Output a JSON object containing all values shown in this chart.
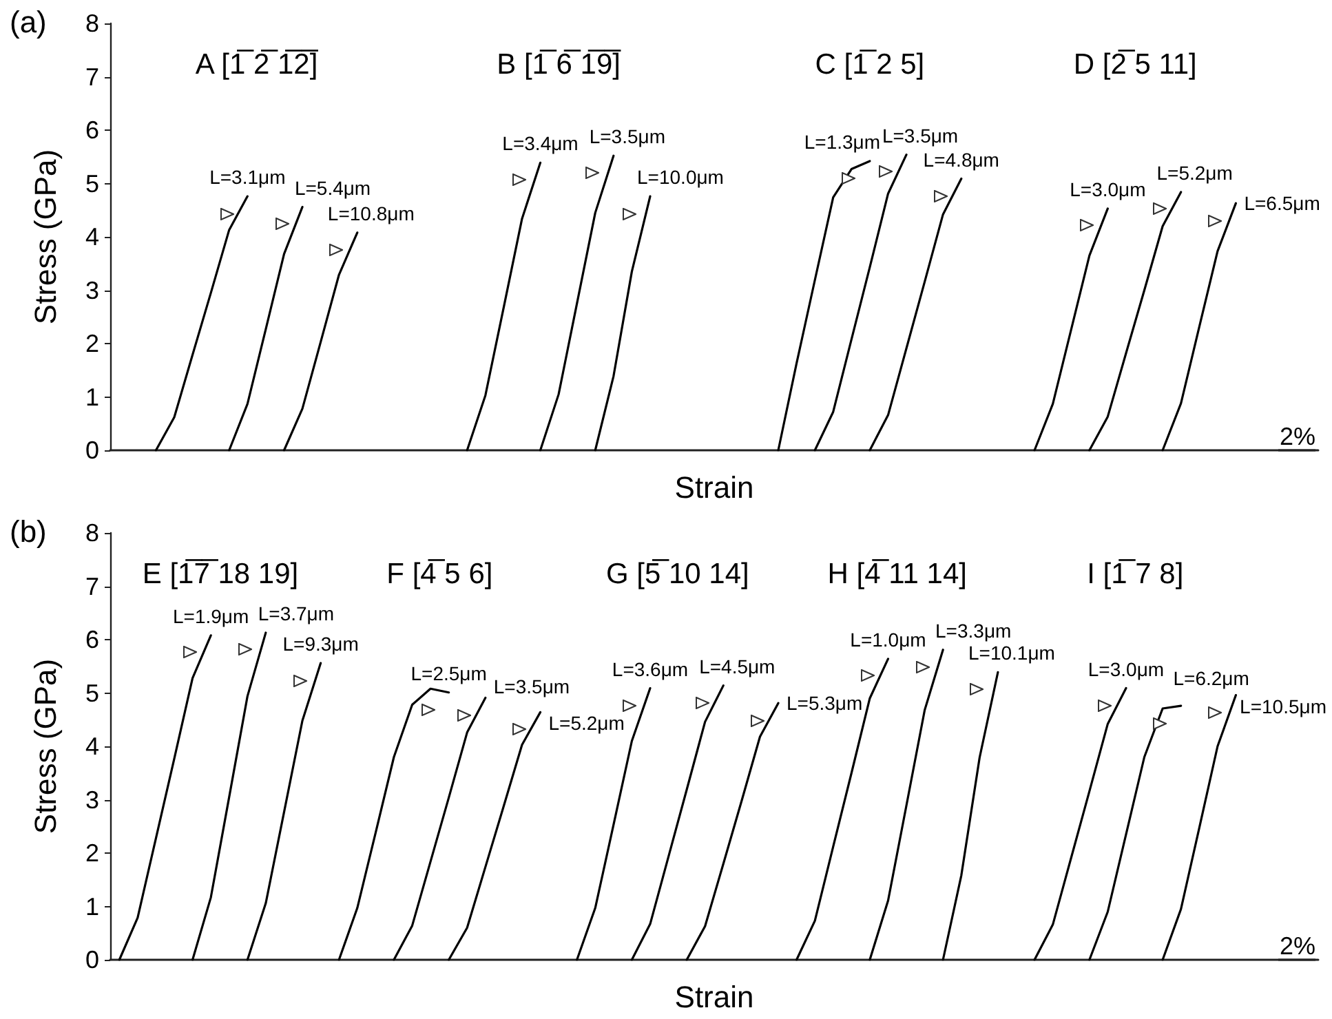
{
  "chart_data": [
    {
      "type": "line",
      "title": "(a)",
      "xlabel": "Strain",
      "ylabel": "Stress (GPa)",
      "ylim": [
        0,
        8
      ],
      "yticks": [
        0,
        1,
        2,
        3,
        4,
        5,
        6,
        7,
        8
      ],
      "tick_labels": "y",
      "marker": "none",
      "line_style": "solid",
      "legend": false,
      "categories": [
        null,
        null,
        null,
        null,
        null,
        null,
        null,
        null,
        null,
        null,
        null,
        null,
        null,
        null,
        null,
        null,
        null,
        null,
        null,
        null,
        null,
        null,
        null,
        null,
        null,
        null,
        null,
        null,
        null,
        null,
        null,
        null,
        null,
        null,
        null,
        null,
        null,
        null,
        null,
        null,
        null,
        null,
        null,
        null,
        null,
        null,
        null,
        null,
        null,
        null,
        null,
        null,
        null,
        null,
        null,
        null,
        null,
        null,
        null,
        null,
        null,
        null,
        null,
        null,
        null,
        null
      ],
      "series": [
        {
          "name": "L=3.1μm",
          "color": "#000000",
          "values": [
            null,
            null,
            0,
            0.62,
            1.79,
            2.95,
            4.13,
            4.76,
            null,
            null,
            null,
            null,
            null,
            null,
            null,
            null,
            null,
            null,
            null,
            null,
            null,
            null,
            null,
            null,
            null,
            null,
            null,
            null,
            null,
            null,
            null,
            null,
            null,
            null,
            null,
            null,
            null,
            null,
            null,
            null,
            null,
            null,
            null,
            null,
            null,
            null,
            null,
            null,
            null,
            null,
            null,
            null,
            null,
            null,
            null,
            null,
            null,
            null,
            null,
            null,
            null,
            null,
            null,
            null,
            null,
            null
          ]
        },
        {
          "name": "L=5.4μm",
          "color": "#000000",
          "values": [
            null,
            null,
            null,
            null,
            null,
            null,
            0,
            0.87,
            2.27,
            3.68,
            4.56,
            null,
            null,
            null,
            null,
            null,
            null,
            null,
            null,
            null,
            null,
            null,
            null,
            null,
            null,
            null,
            null,
            null,
            null,
            null,
            null,
            null,
            null,
            null,
            null,
            null,
            null,
            null,
            null,
            null,
            null,
            null,
            null,
            null,
            null,
            null,
            null,
            null,
            null,
            null,
            null,
            null,
            null,
            null,
            null,
            null,
            null,
            null,
            null,
            null,
            null,
            null,
            null,
            null,
            null,
            null
          ]
        },
        {
          "name": "L=10.8μm",
          "color": "#000000",
          "values": [
            null,
            null,
            null,
            null,
            null,
            null,
            null,
            null,
            null,
            0,
            0.78,
            2.03,
            3.29,
            4.08,
            null,
            null,
            null,
            null,
            null,
            null,
            null,
            null,
            null,
            null,
            null,
            null,
            null,
            null,
            null,
            null,
            null,
            null,
            null,
            null,
            null,
            null,
            null,
            null,
            null,
            null,
            null,
            null,
            null,
            null,
            null,
            null,
            null,
            null,
            null,
            null,
            null,
            null,
            null,
            null,
            null,
            null,
            null,
            null,
            null,
            null,
            null,
            null,
            null,
            null,
            null,
            null
          ]
        },
        {
          "name": "L=3.4μm",
          "color": "#000000",
          "values": [
            null,
            null,
            null,
            null,
            null,
            null,
            null,
            null,
            null,
            null,
            null,
            null,
            null,
            null,
            null,
            null,
            null,
            null,
            null,
            0,
            1.03,
            2.68,
            4.34,
            5.39,
            null,
            null,
            null,
            null,
            null,
            null,
            null,
            null,
            null,
            null,
            null,
            null,
            null,
            null,
            null,
            null,
            null,
            null,
            null,
            null,
            null,
            null,
            null,
            null,
            null,
            null,
            null,
            null,
            null,
            null,
            null,
            null,
            null,
            null,
            null,
            null,
            null,
            null,
            null,
            null,
            null,
            null
          ]
        },
        {
          "name": "L=3.5μm",
          "color": "#000000",
          "values": [
            null,
            null,
            null,
            null,
            null,
            null,
            null,
            null,
            null,
            null,
            null,
            null,
            null,
            null,
            null,
            null,
            null,
            null,
            null,
            null,
            null,
            null,
            null,
            0,
            1.05,
            2.75,
            4.45,
            5.52,
            null,
            null,
            null,
            null,
            null,
            null,
            null,
            null,
            null,
            null,
            null,
            null,
            null,
            null,
            null,
            null,
            null,
            null,
            null,
            null,
            null,
            null,
            null,
            null,
            null,
            null,
            null,
            null,
            null,
            null,
            null,
            null,
            null,
            null,
            null,
            null,
            null,
            null
          ]
        },
        {
          "name": "L=10.0μm",
          "color": "#000000",
          "values": [
            null,
            null,
            null,
            null,
            null,
            null,
            null,
            null,
            null,
            null,
            null,
            null,
            null,
            null,
            null,
            null,
            null,
            null,
            null,
            null,
            null,
            null,
            null,
            null,
            null,
            null,
            0,
            1.39,
            3.35,
            4.76,
            null,
            null,
            null,
            null,
            null,
            null,
            null,
            null,
            null,
            null,
            null,
            null,
            null,
            null,
            null,
            null,
            null,
            null,
            null,
            null,
            null,
            null,
            null,
            null,
            null,
            null,
            null,
            null,
            null,
            null,
            null,
            null,
            null,
            null,
            null,
            null
          ]
        },
        {
          "name": "L=1.3μm",
          "color": "#000000",
          "values": [
            null,
            null,
            null,
            null,
            null,
            null,
            null,
            null,
            null,
            null,
            null,
            null,
            null,
            null,
            null,
            null,
            null,
            null,
            null,
            null,
            null,
            null,
            null,
            null,
            null,
            null,
            null,
            null,
            null,
            null,
            null,
            null,
            null,
            null,
            null,
            null,
            0,
            1.63,
            3.19,
            4.74,
            5.27,
            5.42,
            null,
            null,
            null,
            null,
            null,
            null,
            null,
            null,
            null,
            null,
            null,
            null,
            null,
            null,
            null,
            null,
            null,
            null,
            null,
            null,
            null,
            null,
            null,
            null
          ]
        },
        {
          "name": "L=3.5μm",
          "color": "#000000",
          "values": [
            null,
            null,
            null,
            null,
            null,
            null,
            null,
            null,
            null,
            null,
            null,
            null,
            null,
            null,
            null,
            null,
            null,
            null,
            null,
            null,
            null,
            null,
            null,
            null,
            null,
            null,
            null,
            null,
            null,
            null,
            null,
            null,
            null,
            null,
            null,
            null,
            null,
            null,
            0,
            0.72,
            2.08,
            3.43,
            4.81,
            5.54,
            null,
            null,
            null,
            null,
            null,
            null,
            null,
            null,
            null,
            null,
            null,
            null,
            null,
            null,
            null,
            null,
            null,
            null,
            null,
            null,
            null,
            null
          ]
        },
        {
          "name": "L=4.8μm",
          "color": "#000000",
          "values": [
            null,
            null,
            null,
            null,
            null,
            null,
            null,
            null,
            null,
            null,
            null,
            null,
            null,
            null,
            null,
            null,
            null,
            null,
            null,
            null,
            null,
            null,
            null,
            null,
            null,
            null,
            null,
            null,
            null,
            null,
            null,
            null,
            null,
            null,
            null,
            null,
            null,
            null,
            null,
            null,
            null,
            0,
            0.66,
            1.91,
            3.16,
            4.42,
            5.09,
            null,
            null,
            null,
            null,
            null,
            null,
            null,
            null,
            null,
            null,
            null,
            null,
            null,
            null,
            null,
            null,
            null,
            null,
            null
          ]
        },
        {
          "name": "L=3.0μm",
          "color": "#000000",
          "values": [
            null,
            null,
            null,
            null,
            null,
            null,
            null,
            null,
            null,
            null,
            null,
            null,
            null,
            null,
            null,
            null,
            null,
            null,
            null,
            null,
            null,
            null,
            null,
            null,
            null,
            null,
            null,
            null,
            null,
            null,
            null,
            null,
            null,
            null,
            null,
            null,
            null,
            null,
            null,
            null,
            null,
            null,
            null,
            null,
            null,
            null,
            null,
            null,
            null,
            null,
            0,
            0.87,
            2.26,
            3.65,
            4.53,
            null,
            null,
            null,
            null,
            null,
            null,
            null,
            null,
            null,
            null,
            null
          ]
        },
        {
          "name": "L=5.2μm",
          "color": "#000000",
          "values": [
            null,
            null,
            null,
            null,
            null,
            null,
            null,
            null,
            null,
            null,
            null,
            null,
            null,
            null,
            null,
            null,
            null,
            null,
            null,
            null,
            null,
            null,
            null,
            null,
            null,
            null,
            null,
            null,
            null,
            null,
            null,
            null,
            null,
            null,
            null,
            null,
            null,
            null,
            null,
            null,
            null,
            null,
            null,
            null,
            null,
            null,
            null,
            null,
            null,
            null,
            null,
            null,
            null,
            0,
            0.63,
            1.82,
            3.0,
            4.2,
            4.84,
            null,
            null,
            null,
            null,
            null,
            null,
            null
          ]
        },
        {
          "name": "L=6.5μm",
          "color": "#000000",
          "values": [
            null,
            null,
            null,
            null,
            null,
            null,
            null,
            null,
            null,
            null,
            null,
            null,
            null,
            null,
            null,
            null,
            null,
            null,
            null,
            null,
            null,
            null,
            null,
            null,
            null,
            null,
            null,
            null,
            null,
            null,
            null,
            null,
            null,
            null,
            null,
            null,
            null,
            null,
            null,
            null,
            null,
            null,
            null,
            null,
            null,
            null,
            null,
            null,
            null,
            null,
            null,
            null,
            null,
            null,
            null,
            null,
            null,
            0,
            0.88,
            2.31,
            3.73,
            4.63,
            null,
            null,
            null,
            null
          ]
        }
      ],
      "annotations": [
        "A [1̅ 2̅ 1̅2̅]",
        "B [1̅ 6̅ 1̅9̅]",
        "C [1̅ 2 5]",
        "D [2̅ 5 11]",
        "2%"
      ]
    },
    {
      "type": "line",
      "title": "(b)",
      "xlabel": "Strain",
      "ylabel": "Stress (GPa)",
      "ylim": [
        0,
        8
      ],
      "yticks": [
        0,
        1,
        2,
        3,
        4,
        5,
        6,
        7,
        8
      ],
      "tick_labels": "y",
      "marker": "none",
      "line_style": "solid",
      "legend": false,
      "categories": [
        null,
        null,
        null,
        null,
        null,
        null,
        null,
        null,
        null,
        null,
        null,
        null,
        null,
        null,
        null,
        null,
        null,
        null,
        null,
        null,
        null,
        null,
        null,
        null,
        null,
        null,
        null,
        null,
        null,
        null,
        null,
        null,
        null,
        null,
        null,
        null,
        null,
        null,
        null,
        null,
        null,
        null,
        null,
        null,
        null,
        null,
        null,
        null,
        null,
        null,
        null,
        null,
        null,
        null,
        null,
        null,
        null,
        null,
        null,
        null,
        null,
        null,
        null,
        null,
        null,
        null
      ],
      "series": [
        {
          "name": "L=1.9μm",
          "color": "#000000",
          "values": [
            0,
            0.79,
            2.28,
            3.77,
            5.28,
            6.08,
            null,
            null,
            null,
            null,
            null,
            null,
            null,
            null,
            null,
            null,
            null,
            null,
            null,
            null,
            null,
            null,
            null,
            null,
            null,
            null,
            null,
            null,
            null,
            null,
            null,
            null,
            null,
            null,
            null,
            null,
            null,
            null,
            null,
            null,
            null,
            null,
            null,
            null,
            null,
            null,
            null,
            null,
            null,
            null,
            null,
            null,
            null,
            null,
            null,
            null,
            null,
            null,
            null,
            null,
            null,
            null,
            null,
            null,
            null,
            null
          ]
        },
        {
          "name": "L=3.7μm",
          "color": "#000000",
          "values": [
            null,
            null,
            null,
            null,
            0,
            1.17,
            3.05,
            4.94,
            6.13,
            null,
            null,
            null,
            null,
            null,
            null,
            null,
            null,
            null,
            null,
            null,
            null,
            null,
            null,
            null,
            null,
            null,
            null,
            null,
            null,
            null,
            null,
            null,
            null,
            null,
            null,
            null,
            null,
            null,
            null,
            null,
            null,
            null,
            null,
            null,
            null,
            null,
            null,
            null,
            null,
            null,
            null,
            null,
            null,
            null,
            null,
            null,
            null,
            null,
            null,
            null,
            null,
            null,
            null,
            null,
            null,
            null
          ]
        },
        {
          "name": "L=9.3μm",
          "color": "#000000",
          "values": [
            null,
            null,
            null,
            null,
            null,
            null,
            null,
            0,
            1.06,
            2.77,
            4.48,
            5.56,
            null,
            null,
            null,
            null,
            null,
            null,
            null,
            null,
            null,
            null,
            null,
            null,
            null,
            null,
            null,
            null,
            null,
            null,
            null,
            null,
            null,
            null,
            null,
            null,
            null,
            null,
            null,
            null,
            null,
            null,
            null,
            null,
            null,
            null,
            null,
            null,
            null,
            null,
            null,
            null,
            null,
            null,
            null,
            null,
            null,
            null,
            null,
            null,
            null,
            null,
            null,
            null,
            null,
            null
          ]
        },
        {
          "name": "L=2.5μm",
          "color": "#000000",
          "values": [
            null,
            null,
            null,
            null,
            null,
            null,
            null,
            null,
            null,
            null,
            null,
            null,
            0,
            0.97,
            2.38,
            3.8,
            4.78,
            5.08,
            5.01,
            null,
            null,
            null,
            null,
            null,
            null,
            null,
            null,
            null,
            null,
            null,
            null,
            null,
            null,
            null,
            null,
            null,
            null,
            null,
            null,
            null,
            null,
            null,
            null,
            null,
            null,
            null,
            null,
            null,
            null,
            null,
            null,
            null,
            null,
            null,
            null,
            null,
            null,
            null,
            null,
            null,
            null,
            null,
            null,
            null,
            null,
            null
          ]
        },
        {
          "name": "L=3.5μm",
          "color": "#000000",
          "values": [
            null,
            null,
            null,
            null,
            null,
            null,
            null,
            null,
            null,
            null,
            null,
            null,
            null,
            null,
            null,
            0,
            0.64,
            1.84,
            3.04,
            4.26,
            4.91,
            null,
            null,
            null,
            null,
            null,
            null,
            null,
            null,
            null,
            null,
            null,
            null,
            null,
            null,
            null,
            null,
            null,
            null,
            null,
            null,
            null,
            null,
            null,
            null,
            null,
            null,
            null,
            null,
            null,
            null,
            null,
            null,
            null,
            null,
            null,
            null,
            null,
            null,
            null,
            null,
            null,
            null,
            null,
            null,
            null
          ]
        },
        {
          "name": "L=5.2μm",
          "color": "#000000",
          "values": [
            null,
            null,
            null,
            null,
            null,
            null,
            null,
            null,
            null,
            null,
            null,
            null,
            null,
            null,
            null,
            null,
            null,
            null,
            0,
            0.6,
            1.74,
            2.88,
            4.03,
            4.64,
            null,
            null,
            null,
            null,
            null,
            null,
            null,
            null,
            null,
            null,
            null,
            null,
            null,
            null,
            null,
            null,
            null,
            null,
            null,
            null,
            null,
            null,
            null,
            null,
            null,
            null,
            null,
            null,
            null,
            null,
            null,
            null,
            null,
            null,
            null,
            null,
            null,
            null,
            null,
            null,
            null,
            null
          ]
        },
        {
          "name": "L=3.6μm",
          "color": "#000000",
          "values": [
            null,
            null,
            null,
            null,
            null,
            null,
            null,
            null,
            null,
            null,
            null,
            null,
            null,
            null,
            null,
            null,
            null,
            null,
            null,
            null,
            null,
            null,
            null,
            null,
            null,
            0,
            0.97,
            2.53,
            4.1,
            5.09,
            null,
            null,
            null,
            null,
            null,
            null,
            null,
            null,
            null,
            null,
            null,
            null,
            null,
            null,
            null,
            null,
            null,
            null,
            null,
            null,
            null,
            null,
            null,
            null,
            null,
            null,
            null,
            null,
            null,
            null,
            null,
            null,
            null,
            null,
            null,
            null
          ]
        },
        {
          "name": "L=4.5μm",
          "color": "#000000",
          "values": [
            null,
            null,
            null,
            null,
            null,
            null,
            null,
            null,
            null,
            null,
            null,
            null,
            null,
            null,
            null,
            null,
            null,
            null,
            null,
            null,
            null,
            null,
            null,
            null,
            null,
            null,
            null,
            null,
            0,
            0.67,
            1.93,
            3.19,
            4.46,
            5.14,
            null,
            null,
            null,
            null,
            null,
            null,
            null,
            null,
            null,
            null,
            null,
            null,
            null,
            null,
            null,
            null,
            null,
            null,
            null,
            null,
            null,
            null,
            null,
            null,
            null,
            null,
            null,
            null,
            null,
            null,
            null,
            null
          ]
        },
        {
          "name": "L=5.3μm",
          "color": "#000000",
          "values": [
            null,
            null,
            null,
            null,
            null,
            null,
            null,
            null,
            null,
            null,
            null,
            null,
            null,
            null,
            null,
            null,
            null,
            null,
            null,
            null,
            null,
            null,
            null,
            null,
            null,
            null,
            null,
            null,
            null,
            null,
            null,
            0,
            0.63,
            1.8,
            2.98,
            4.18,
            4.81,
            null,
            null,
            null,
            null,
            null,
            null,
            null,
            null,
            null,
            null,
            null,
            null,
            null,
            null,
            null,
            null,
            null,
            null,
            null,
            null,
            null,
            null,
            null,
            null,
            null,
            null,
            null,
            null,
            null
          ]
        },
        {
          "name": "L=1.0μm",
          "color": "#000000",
          "values": [
            null,
            null,
            null,
            null,
            null,
            null,
            null,
            null,
            null,
            null,
            null,
            null,
            null,
            null,
            null,
            null,
            null,
            null,
            null,
            null,
            null,
            null,
            null,
            null,
            null,
            null,
            null,
            null,
            null,
            null,
            null,
            null,
            null,
            null,
            null,
            null,
            null,
            0,
            0.73,
            2.12,
            3.5,
            4.9,
            5.64,
            null,
            null,
            null,
            null,
            null,
            null,
            null,
            null,
            null,
            null,
            null,
            null,
            null,
            null,
            null,
            null,
            null,
            null,
            null,
            null,
            null,
            null,
            null
          ]
        },
        {
          "name": "L=3.3μm",
          "color": "#000000",
          "values": [
            null,
            null,
            null,
            null,
            null,
            null,
            null,
            null,
            null,
            null,
            null,
            null,
            null,
            null,
            null,
            null,
            null,
            null,
            null,
            null,
            null,
            null,
            null,
            null,
            null,
            null,
            null,
            null,
            null,
            null,
            null,
            null,
            null,
            null,
            null,
            null,
            null,
            null,
            null,
            null,
            null,
            0,
            1.11,
            2.89,
            4.68,
            5.81,
            null,
            null,
            null,
            null,
            null,
            null,
            null,
            null,
            null,
            null,
            null,
            null,
            null,
            null,
            null,
            null,
            null,
            null,
            null,
            null
          ]
        },
        {
          "name": "L=10.1μm",
          "color": "#000000",
          "values": [
            null,
            null,
            null,
            null,
            null,
            null,
            null,
            null,
            null,
            null,
            null,
            null,
            null,
            null,
            null,
            null,
            null,
            null,
            null,
            null,
            null,
            null,
            null,
            null,
            null,
            null,
            null,
            null,
            null,
            null,
            null,
            null,
            null,
            null,
            null,
            null,
            null,
            null,
            null,
            null,
            null,
            null,
            null,
            null,
            null,
            0,
            1.58,
            3.79,
            5.39,
            null,
            null,
            null,
            null,
            null,
            null,
            null,
            null,
            null,
            null,
            null,
            null,
            null,
            null,
            null,
            null,
            null
          ]
        },
        {
          "name": "L=3.0μm",
          "color": "#000000",
          "values": [
            null,
            null,
            null,
            null,
            null,
            null,
            null,
            null,
            null,
            null,
            null,
            null,
            null,
            null,
            null,
            null,
            null,
            null,
            null,
            null,
            null,
            null,
            null,
            null,
            null,
            null,
            null,
            null,
            null,
            null,
            null,
            null,
            null,
            null,
            null,
            null,
            null,
            null,
            null,
            null,
            null,
            null,
            null,
            null,
            null,
            null,
            null,
            null,
            null,
            null,
            0,
            0.66,
            1.91,
            3.16,
            4.42,
            5.09,
            null,
            null,
            null,
            null,
            null,
            null,
            null,
            null,
            null,
            null
          ]
        },
        {
          "name": "L=6.2μm",
          "color": "#000000",
          "values": [
            null,
            null,
            null,
            null,
            null,
            null,
            null,
            null,
            null,
            null,
            null,
            null,
            null,
            null,
            null,
            null,
            null,
            null,
            null,
            null,
            null,
            null,
            null,
            null,
            null,
            null,
            null,
            null,
            null,
            null,
            null,
            null,
            null,
            null,
            null,
            null,
            null,
            null,
            null,
            null,
            null,
            null,
            null,
            null,
            null,
            null,
            null,
            null,
            null,
            null,
            null,
            null,
            null,
            0,
            0.9,
            2.35,
            3.8,
            4.71,
            4.76,
            null,
            null,
            null,
            null,
            null,
            null,
            null
          ]
        },
        {
          "name": "L=10.5μm",
          "color": "#000000",
          "values": [
            null,
            null,
            null,
            null,
            null,
            null,
            null,
            null,
            null,
            null,
            null,
            null,
            null,
            null,
            null,
            null,
            null,
            null,
            null,
            null,
            null,
            null,
            null,
            null,
            null,
            null,
            null,
            null,
            null,
            null,
            null,
            null,
            null,
            null,
            null,
            null,
            null,
            null,
            null,
            null,
            null,
            null,
            null,
            null,
            null,
            null,
            null,
            null,
            null,
            null,
            null,
            null,
            null,
            null,
            null,
            null,
            null,
            0,
            0.95,
            2.47,
            4.0,
            4.96,
            null,
            null,
            null,
            null
          ]
        }
      ],
      "annotations": [
        "E [1̅7̅ 18 19]",
        "F [4̅ 5 6]",
        "G [5̅ 10 14]",
        "H [4̅ 11 14]",
        "I [1̅ 7 8]",
        "2%"
      ]
    }
  ]
}
